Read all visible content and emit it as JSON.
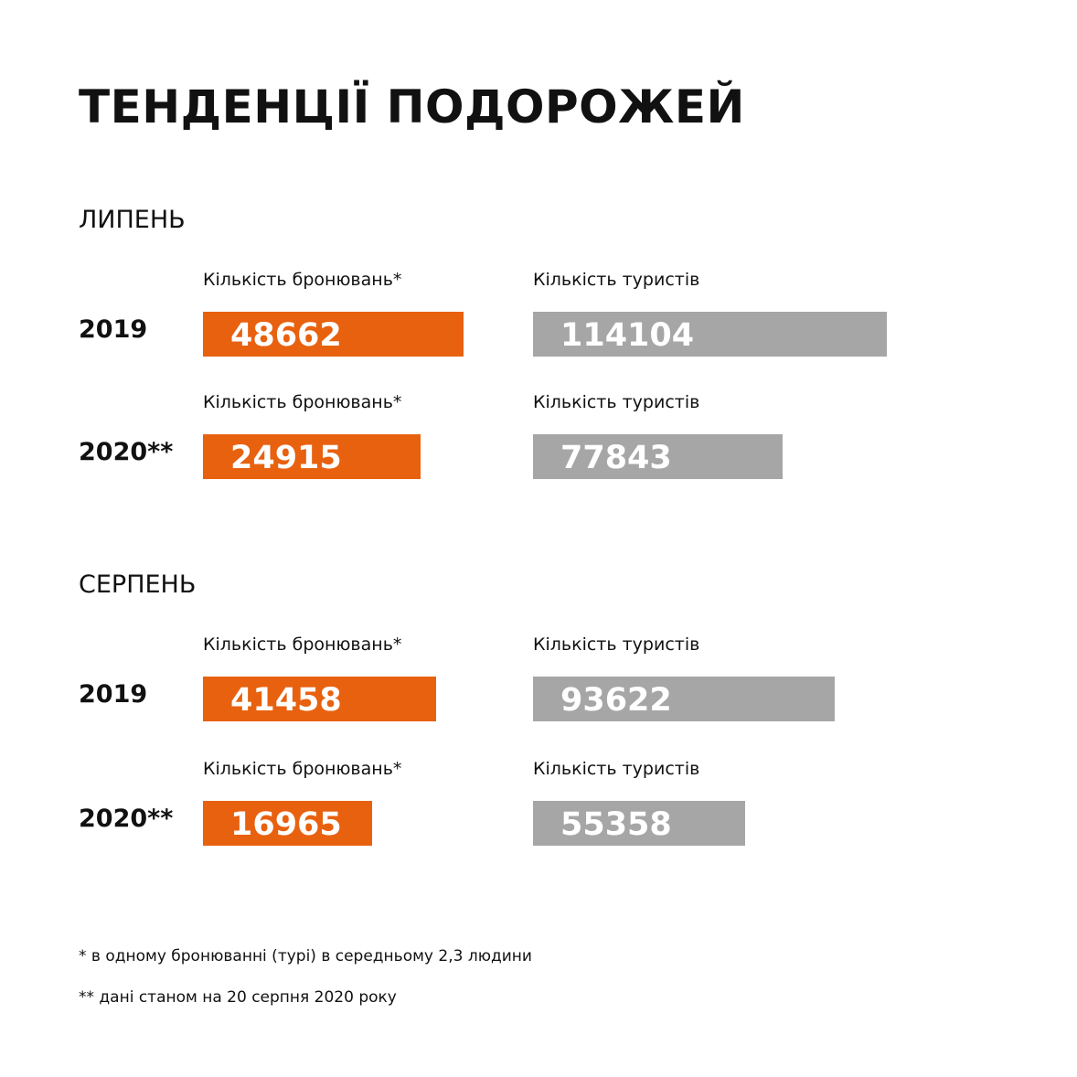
{
  "title": "ТЕНДЕНЦІЇ ПОДОРОЖЕЙ",
  "sections": [
    {
      "month": "ЛИПЕНЬ",
      "rows": [
        {
          "year": "2019",
          "bookings_label": "Кількість бронювань*",
          "bookings": 48662,
          "tourists_label": "Кількість туристів",
          "tourists": 114104
        },
        {
          "year": "2020**",
          "bookings_label": "Кількість бронювань*",
          "bookings": 24915,
          "tourists_label": "Кількість туристів",
          "tourists": 77843
        }
      ]
    },
    {
      "month": "СЕРПЕНЬ",
      "rows": [
        {
          "year": "2019",
          "bookings_label": "Кількість бронювань*",
          "bookings": 41458,
          "tourists_label": "Кількість туристів",
          "tourists": 93622
        },
        {
          "year": "2020**",
          "bookings_label": "Кількість бронювань*",
          "bookings": 16965,
          "tourists_label": "Кількість туристів",
          "tourists": 55358
        }
      ]
    }
  ],
  "footnotes": [
    "*  в одному бронюванні (турі) в середньому 2,3 людини",
    "** дані станом на 20 серпня 2020 року"
  ]
}
